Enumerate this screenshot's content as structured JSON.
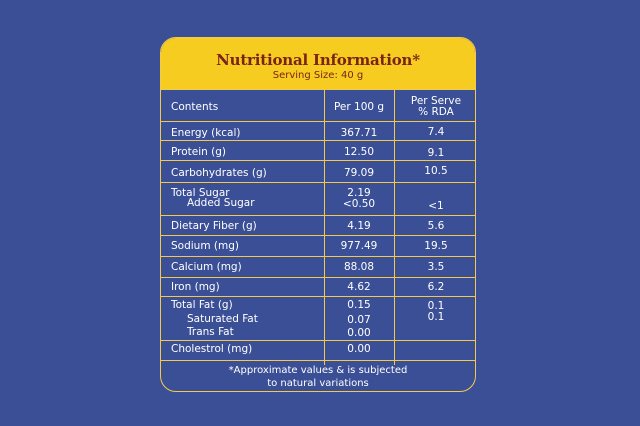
{
  "title": "Nutritional Information*",
  "serving": "Serving Size: 40 g",
  "headers": {
    "contents": "Contents",
    "per100": "Per 100 g",
    "perServe1": "Per Serve",
    "perServe2": "% RDA"
  },
  "rows": {
    "energy": {
      "label": "Energy (kcal)",
      "per100": "367.71",
      "rda": "7.4"
    },
    "protein": {
      "label": "Protein (g)",
      "per100": "12.50",
      "rda": "9.1"
    },
    "carbs": {
      "label": "Carbohydrates (g)",
      "per100": "79.09",
      "rda": "10.5"
    },
    "sugar": {
      "label": "Total Sugar",
      "sub": "Added Sugar",
      "per100": "2.19",
      "per100_sub": "<0.50",
      "rda_sub": "<1"
    },
    "fiber": {
      "label": "Dietary Fiber (g)",
      "per100": "4.19",
      "rda": "5.6"
    },
    "sodium": {
      "label": "Sodium (mg)",
      "per100": "977.49",
      "rda": "19.5"
    },
    "calcium": {
      "label": "Calcium (mg)",
      "per100": "88.08",
      "rda": "3.5"
    },
    "iron": {
      "label": "Iron (mg)",
      "per100": "4.62",
      "rda": "6.2"
    },
    "fat": {
      "label": "Total Fat (g)",
      "sat": "Saturated Fat",
      "trans": "Trans Fat",
      "per100": "0.15",
      "per100_sat": "0.07",
      "per100_trans": "0.00",
      "rda": "0.1",
      "rda_sat": "0.1"
    },
    "cholesterol": {
      "label": "Cholestrol (mg)",
      "per100": "0.00"
    }
  },
  "footer1": "*Approximate values & is subjected",
  "footer2": "to natural variations"
}
